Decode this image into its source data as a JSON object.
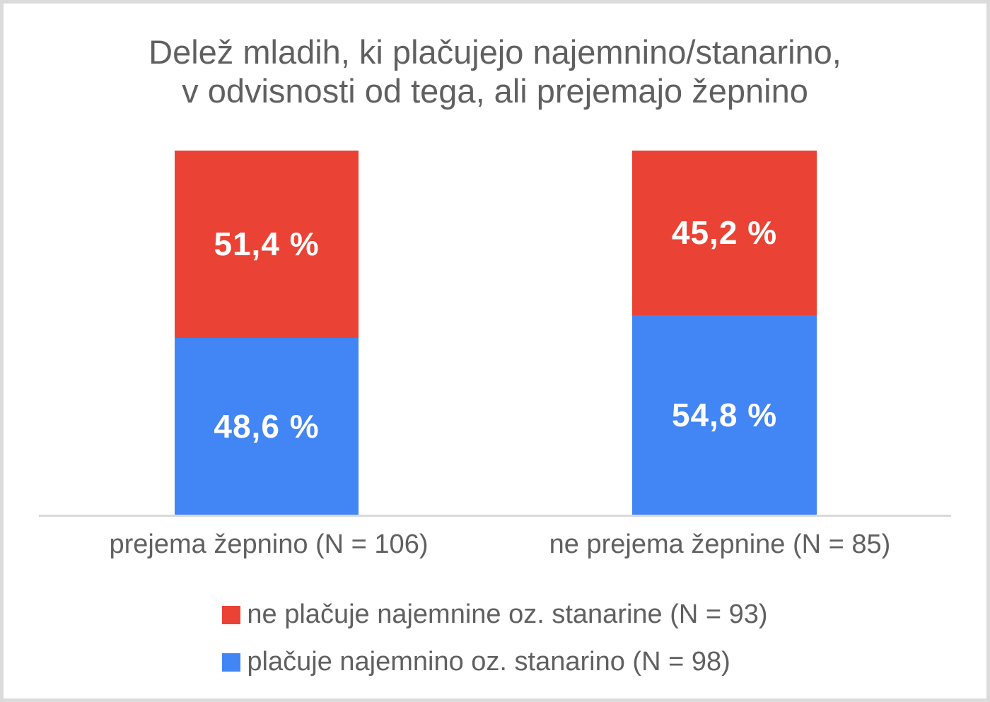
{
  "chart_data": {
    "type": "bar",
    "stacked": true,
    "orientation": "vertical",
    "title": "Delež mladih, ki plačujejo najemnino/stanarino, v odvisnosti od tega, ali prejemajo žepnino",
    "title_lines": [
      "Delež mladih, ki plačujejo najemnino/stanarino,",
      "v odvisnosti od tega, ali prejemajo žepnino"
    ],
    "categories": [
      "prejema žepnino (N = 106)",
      "ne prejema žepnine (N = 85)"
    ],
    "series": [
      {
        "name": "ne plačuje najemnine oz. stanarine (N = 93)",
        "color": "#EA4335",
        "values": [
          51.4,
          45.2
        ],
        "labels": [
          "51,4 %",
          "45,2 %"
        ]
      },
      {
        "name": "plačuje najemnino oz. stanarino (N = 98)",
        "color": "#4285F4",
        "values": [
          48.6,
          54.8
        ],
        "labels": [
          "48,6 %",
          "54,8 %"
        ]
      }
    ],
    "ylim": [
      0,
      100
    ],
    "grid": false,
    "legend_position": "bottom",
    "colors": {
      "text": "#606060",
      "axis_line": "#D9D9D9",
      "data_label": "#FFFFFF",
      "frame_border": "#DBDBDB",
      "background": "#FFFFFF"
    }
  }
}
